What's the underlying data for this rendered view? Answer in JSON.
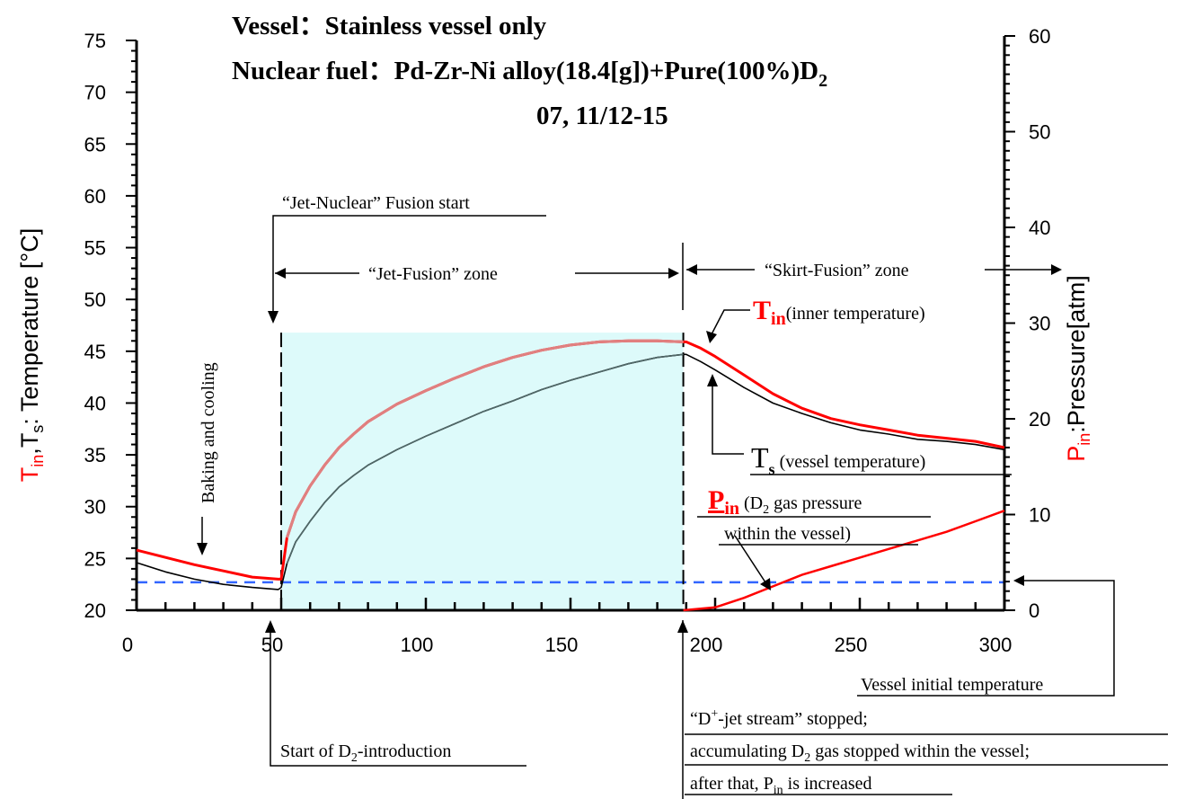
{
  "chart_data": {
    "type": "line",
    "title_lines": [
      "Vessel：Stainless vessel only",
      "Nuclear fuel：Pd-Zr-Ni alloy(18.4[g])+Pure(100%)D",
      "07, 11/12-15"
    ],
    "title_sub": "2",
    "xlabel": "",
    "x_ticks": [
      0,
      50,
      100,
      150,
      200,
      250,
      300
    ],
    "xlim": [
      0,
      300
    ],
    "y_left": {
      "label_parts": [
        "T",
        "in",
        ",T",
        "s",
        ": Temperature [°C]"
      ],
      "ylim": [
        20,
        75
      ],
      "ticks": [
        20,
        25,
        30,
        35,
        40,
        45,
        50,
        55,
        60,
        65,
        70,
        75
      ]
    },
    "y_right": {
      "label_parts": [
        "P",
        "in",
        ":Pressure[atm]"
      ],
      "ylim": [
        0,
        60
      ],
      "ticks": [
        0,
        10,
        20,
        30,
        40,
        50,
        60
      ]
    },
    "series": [
      {
        "axis": "left",
        "color": "#ff0000",
        "x": [
          0,
          10,
          20,
          30,
          40,
          49,
          50,
          52,
          55,
          60,
          65,
          70,
          75,
          80,
          90,
          100,
          110,
          120,
          130,
          140,
          150,
          160,
          170,
          180,
          189,
          190,
          195,
          200,
          210,
          220,
          230,
          240,
          250,
          260,
          270,
          280,
          290,
          300
        ],
        "y": [
          25.8,
          25.1,
          24.4,
          23.8,
          23.2,
          23.0,
          23.0,
          27.0,
          29.5,
          32.0,
          34.0,
          35.7,
          37.0,
          38.2,
          39.9,
          41.2,
          42.4,
          43.5,
          44.4,
          45.1,
          45.6,
          45.9,
          46.0,
          46.0,
          45.9,
          45.9,
          45.3,
          44.5,
          42.7,
          40.9,
          39.5,
          38.5,
          37.9,
          37.4,
          36.9,
          36.6,
          36.3,
          35.7
        ]
      },
      {
        "axis": "left",
        "color": "#000000",
        "x": [
          0,
          10,
          20,
          30,
          40,
          49,
          50,
          52,
          55,
          60,
          65,
          70,
          75,
          80,
          90,
          100,
          110,
          120,
          130,
          140,
          150,
          160,
          170,
          180,
          189,
          190,
          195,
          200,
          210,
          220,
          230,
          240,
          250,
          260,
          270,
          280,
          290,
          300
        ],
        "y": [
          24.6,
          23.7,
          23.0,
          22.5,
          22.2,
          22.0,
          22.2,
          24.5,
          26.6,
          28.6,
          30.4,
          31.9,
          33.0,
          34.0,
          35.5,
          36.8,
          38.0,
          39.2,
          40.2,
          41.3,
          42.2,
          43.0,
          43.8,
          44.4,
          44.7,
          44.7,
          44.0,
          43.2,
          41.5,
          40.0,
          39.0,
          38.1,
          37.4,
          37.0,
          36.5,
          36.3,
          36.0,
          35.5
        ]
      },
      {
        "axis": "right",
        "color": "#ff0000",
        "x": [
          189,
          200,
          210,
          220,
          230,
          240,
          250,
          260,
          270,
          280,
          290,
          300
        ],
        "y": [
          0,
          0.3,
          1.3,
          2.5,
          3.7,
          4.6,
          5.5,
          6.4,
          7.3,
          8.2,
          9.3,
          10.4
        ]
      }
    ],
    "reference_line": {
      "axis": "left",
      "value": 22.7,
      "color": "#3366ff"
    },
    "shaded_region": {
      "x": [
        50,
        189
      ],
      "y": [
        20,
        46.8
      ],
      "color": "#ddfafa"
    },
    "vertical_markers": [
      50,
      189
    ],
    "annotations": {
      "baking": "Baking and cooling",
      "jet_start": "“Jet-Nuclear” Fusion start",
      "jet_zone": "“Jet-Fusion” zone",
      "skirt_zone": "“Skirt-Fusion” zone",
      "tin_main": "T",
      "tin_sub": "in",
      "tin_desc": "(inner temperature)",
      "ts_main": "T",
      "ts_sub": "s",
      "ts_desc": " (vessel temperature)",
      "pin_main": "P",
      "pin_sub": "in",
      "pin_desc_a": " (D",
      "pin_desc_sub": "2",
      "pin_desc_b": " gas pressure",
      "pin_desc2": "within the vessel)",
      "vessel_init": "Vessel initial temperature",
      "start_d2_a": "Start of D",
      "start_d2_sub": "2",
      "start_d2_b": "-introduction",
      "djet_a": "“D",
      "djet_sup": "+",
      "djet_b": "-jet stream” stopped;",
      "accum_a": "accumulating D",
      "accum_sub": "2",
      "accum_b": " gas stopped within the vessel;",
      "after_a": "after that, P",
      "after_sub": "in",
      "after_b": " is increased"
    }
  }
}
